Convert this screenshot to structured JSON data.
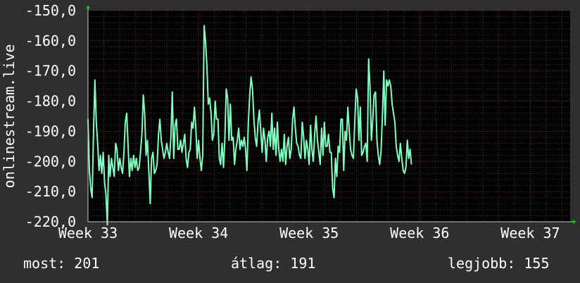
{
  "chart_data": {
    "type": "line",
    "ylabel": "onlinestream.live",
    "ylim": [
      -220,
      -150
    ],
    "yticks": [
      -220,
      -210,
      -200,
      -190,
      -180,
      -170,
      -160,
      -150
    ],
    "ytick_labels": [
      "-220,0",
      "-210,0",
      "-200,0",
      "-190,0",
      "-180,0",
      "-170,0",
      "-160,0",
      "-150,0"
    ],
    "xlim": [
      0,
      4.36
    ],
    "xticks": [
      0,
      1,
      2,
      3,
      4
    ],
    "xtick_labels": [
      "Week 33",
      "Week 34",
      "Week 35",
      "Week 36",
      "Week 37"
    ],
    "grid": true,
    "series": [
      {
        "color": "#7fffbf",
        "x_start": 0,
        "x_step": 0.0125,
        "values": [
          -186,
          -203,
          -209,
          -212,
          -190,
          -173,
          -187,
          -194,
          -203,
          -198,
          -204,
          -197,
          -207,
          -211,
          -221,
          -198,
          -205,
          -199,
          -202,
          -205,
          -194,
          -196,
          -203,
          -199,
          -202,
          -204,
          -197,
          -187,
          -184,
          -195,
          -205,
          -199,
          -203,
          -198,
          -202,
          -199,
          -203,
          -202,
          -197,
          -191,
          -178,
          -184,
          -198,
          -193,
          -203,
          -214,
          -199,
          -197,
          -204,
          -203,
          -201,
          -191,
          -186,
          -193,
          -196,
          -199,
          -197,
          -194,
          -197,
          -199,
          -192,
          -177,
          -199,
          -188,
          -186,
          -196,
          -196,
          -193,
          -197,
          -194,
          -191,
          -199,
          -202,
          -197,
          -196,
          -187,
          -189,
          -182,
          -189,
          -199,
          -193,
          -199,
          -203,
          -198,
          -155,
          -160,
          -168,
          -181,
          -179,
          -184,
          -193,
          -191,
          -180,
          -186,
          -186,
          -199,
          -201,
          -194,
          -202,
          -193,
          -176,
          -179,
          -193,
          -181,
          -193,
          -192,
          -201,
          -196,
          -193,
          -189,
          -196,
          -193,
          -195,
          -192,
          -196,
          -203,
          -187,
          -178,
          -172,
          -176,
          -186,
          -192,
          -195,
          -187,
          -183,
          -190,
          -197,
          -189,
          -193,
          -200,
          -192,
          -190,
          -195,
          -184,
          -196,
          -189,
          -198,
          -187,
          -196,
          -200,
          -196,
          -200,
          -191,
          -201,
          -195,
          -192,
          -199,
          -196,
          -186,
          -182,
          -189,
          -194,
          -195,
          -198,
          -199,
          -187,
          -192,
          -199,
          -193,
          -196,
          -201,
          -188,
          -196,
          -200,
          -191,
          -185,
          -193,
          -197,
          -201,
          -189,
          -198,
          -187,
          -195,
          -195,
          -191,
          -197,
          -197,
          -209,
          -212,
          -199,
          -205,
          -195,
          -197,
          -186,
          -186,
          -203,
          -190,
          -193,
          -182,
          -190,
          -196,
          -198,
          -199,
          -187,
          -176,
          -179,
          -193,
          -182,
          -198,
          -197,
          -195,
          -194,
          -200,
          -166,
          -175,
          -193,
          -186,
          -178,
          -177,
          -193,
          -198,
          -201,
          -197,
          -185,
          -170,
          -188,
          -173,
          -175,
          -173,
          -175,
          -181,
          -184,
          -187,
          -195,
          -198,
          -200,
          -194,
          -199,
          -203,
          -204,
          -202,
          -193,
          -199,
          -196,
          -201
        ]
      }
    ]
  },
  "stats": {
    "current": "most: 201",
    "average": "átlag: 191",
    "best": "legjobb: 155"
  }
}
